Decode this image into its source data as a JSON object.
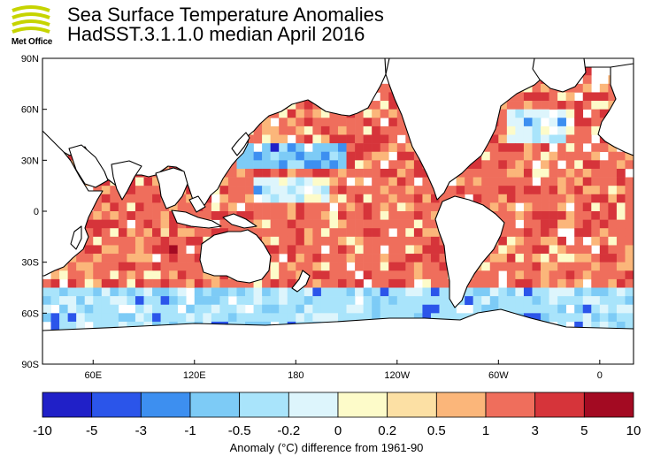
{
  "logo": {
    "text": "Met Office",
    "color": "#c6d400"
  },
  "title": {
    "line1": "Sea Surface Temperature Anomalies",
    "line2": "HadSST.3.1.1.0 median April 2016"
  },
  "map": {
    "lat_labels": [
      "90N",
      "60N",
      "30N",
      "0",
      "30S",
      "60S",
      "90S"
    ],
    "lat_values": [
      90,
      60,
      30,
      0,
      -30,
      -60,
      -90
    ],
    "lon_labels": [
      "60E",
      "120E",
      "180",
      "120W",
      "60W",
      "0"
    ],
    "lon_values": [
      60,
      120,
      180,
      240,
      300,
      360
    ],
    "lon_range": [
      30,
      380
    ],
    "lat_range": [
      -90,
      90
    ],
    "grid_size_deg": 5
  },
  "colorbar": {
    "tick_labels": [
      "-10",
      "-5",
      "-3",
      "-1",
      "-0.5",
      "-0.2",
      "0",
      "0.2",
      "0.5",
      "1",
      "3",
      "5",
      "10"
    ],
    "colors": [
      "#2020c8",
      "#2b55ea",
      "#3d8ff0",
      "#7dcbf6",
      "#a9e4fb",
      "#ddf5fc",
      "#fdfbc9",
      "#fce0a4",
      "#fbb67a",
      "#ef6e5c",
      "#d6343a",
      "#a30a22"
    ]
  },
  "footer": {
    "label": "Anomaly (°C) difference from 1961-90"
  }
}
